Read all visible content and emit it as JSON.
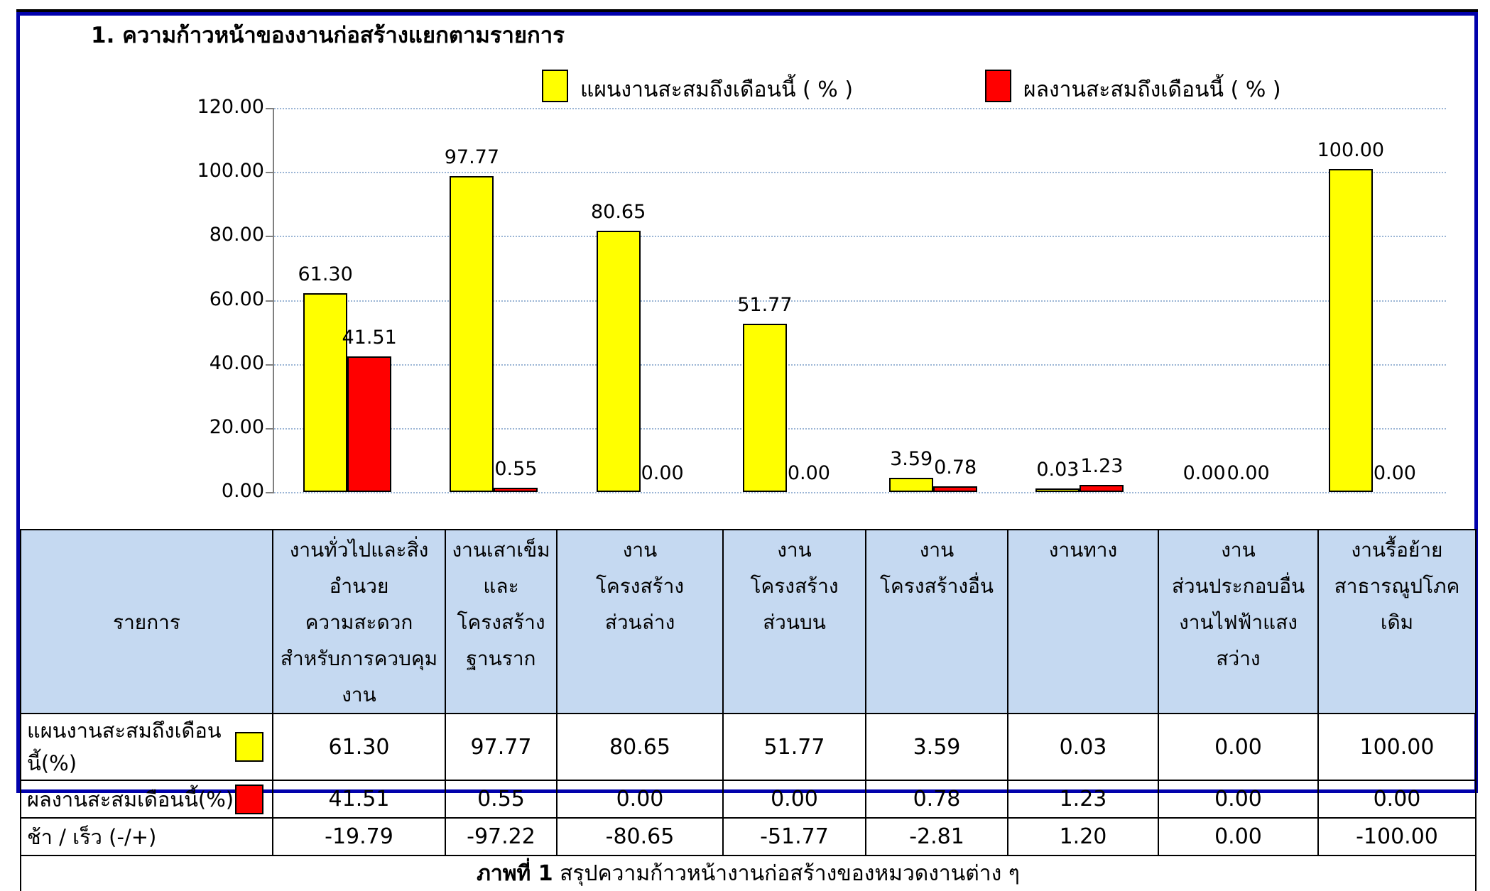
{
  "page": {
    "title": "1. ความก้าวหน้าของงานก่อสร้างแยกตามรายการ"
  },
  "legend": {
    "plan_label": "แผนงานสะสมถึงเดือนนี้ ( % )",
    "actual_label": "ผลงานสะสมถึงเดือนนี้ ( % )",
    "plan_color": "#FFFF00",
    "actual_color": "#FF0000"
  },
  "chart_data": {
    "type": "bar",
    "title": "",
    "xlabel": "",
    "ylabel": "",
    "categories": [
      "งานทั่วไปและสิ่งอำนวยความสะดวกสำหรับการควบคุมงาน",
      "งานเสาเข็มและโครงสร้างฐานราก",
      "งานโครงสร้างส่วนล่าง",
      "งานโครงสร้างส่วนบน",
      "งานโครงสร้างอื่น",
      "งานทาง",
      "งานส่วนประกอบอื่น งานไฟฟ้าแสงสว่าง",
      "งานรื้อย้ายสาธารณูปโภคเดิม"
    ],
    "series": [
      {
        "name": "แผนงานสะสมถึงเดือนนี้ ( % )",
        "color": "#FFFF00",
        "values": [
          61.3,
          97.77,
          80.65,
          51.77,
          3.59,
          0.03,
          0.0,
          100.0
        ],
        "labels": [
          "61.30",
          "97.77",
          "80.65",
          "51.77",
          "3.59",
          "0.03",
          "0.00",
          "100.00"
        ]
      },
      {
        "name": "ผลงานสะสมถึงเดือนนี้ ( % )",
        "color": "#FF0000",
        "values": [
          41.51,
          0.55,
          0.0,
          0.0,
          0.78,
          1.23,
          0.0,
          0.0
        ],
        "labels": [
          "41.51",
          "0.55",
          "0.00",
          "0.00",
          "0.78",
          "1.23",
          "0.00",
          "0.00"
        ]
      }
    ],
    "ylim": [
      0,
      120
    ],
    "ytick_step": 20,
    "ytick_labels": [
      "120.00",
      "100.00",
      "80.00",
      "60.00",
      "40.00",
      "20.00",
      "0.00"
    ],
    "grid": true,
    "gridline_color": "#9BB5D5",
    "legend_position": "top"
  },
  "table": {
    "corner_header": "รายการ",
    "col_headers": [
      [
        "งานทั่วไปและสิ่งอำนวย",
        "ความสะดวก",
        "สำหรับการควบคุมงาน"
      ],
      [
        "งานเสาเข็ม",
        "และโครงสร้าง",
        "ฐานราก"
      ],
      [
        "งาน",
        "โครงสร้าง",
        "ส่วนล่าง"
      ],
      [
        "งาน",
        "โครงสร้าง",
        "ส่วนบน"
      ],
      [
        "งาน",
        "โครงสร้างอื่น"
      ],
      [
        "งานทาง"
      ],
      [
        "งาน",
        "ส่วนประกอบอื่น",
        "งานไฟฟ้าแสงสว่าง"
      ],
      [
        "งานรื้อย้าย",
        "สาธารณูปโภคเดิม"
      ]
    ],
    "rows": [
      {
        "label": "แผนงานสะสมถึงเดือนนี้(%)",
        "swatch": "#FFFF00",
        "values": [
          "61.30",
          "97.77",
          "80.65",
          "51.77",
          "3.59",
          "0.03",
          "0.00",
          "100.00"
        ]
      },
      {
        "label": "ผลงานสะสมเดือนนี้(%)",
        "swatch": "#FF0000",
        "values": [
          "41.51",
          "0.55",
          "0.00",
          "0.00",
          "0.78",
          "1.23",
          "0.00",
          "0.00"
        ]
      },
      {
        "label": "ช้า / เร็ว  (-/+)",
        "swatch": null,
        "values": [
          "-19.79",
          "-97.22",
          "-80.65",
          "-51.77",
          "-2.81",
          "1.20",
          "0.00",
          "-100.00"
        ]
      }
    ],
    "caption_prefix": "ภาพที่ 1",
    "caption_rest": "สรุปความก้าวหน้างานก่อสร้างของหมวดงานต่าง ๆ"
  }
}
